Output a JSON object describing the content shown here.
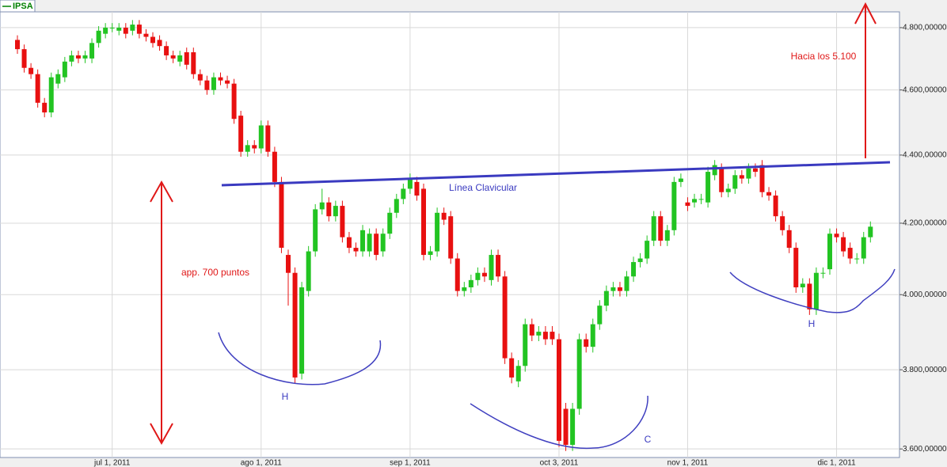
{
  "chart_data": {
    "type": "candlestick",
    "series": [
      {
        "name": "IPSA",
        "color": "#008000"
      }
    ],
    "up_color": "#22c422",
    "down_color": "#e81010",
    "log_scale": true,
    "grid": true,
    "ylim": [
      3579,
      4852
    ],
    "yticks": [
      {
        "value": 3600,
        "label": "3.600,00000"
      },
      {
        "value": 3800,
        "label": "3.800,00000"
      },
      {
        "value": 4000,
        "label": "4.000,00000"
      },
      {
        "value": 4200,
        "label": "4.200,00000"
      },
      {
        "value": 4400,
        "label": "4.400,00000"
      },
      {
        "value": 4600,
        "label": "4.600,00000"
      },
      {
        "value": 4800,
        "label": "4.800,00000"
      }
    ],
    "categories": [
      null,
      null,
      null,
      null,
      null,
      null,
      null,
      null,
      null,
      null,
      null,
      null,
      null,
      null,
      "jul 1, 2011",
      null,
      null,
      null,
      null,
      null,
      null,
      null,
      null,
      null,
      null,
      null,
      null,
      null,
      null,
      null,
      null,
      null,
      null,
      null,
      null,
      null,
      "ago 1, 2011",
      null,
      null,
      null,
      null,
      null,
      null,
      null,
      null,
      null,
      null,
      null,
      null,
      null,
      null,
      null,
      null,
      null,
      null,
      null,
      null,
      null,
      "sep 1, 2011",
      null,
      null,
      null,
      null,
      null,
      null,
      null,
      null,
      null,
      null,
      null,
      null,
      null,
      null,
      null,
      null,
      null,
      null,
      null,
      null,
      null,
      "oct 3, 2011",
      null,
      null,
      null,
      null,
      null,
      null,
      null,
      null,
      null,
      null,
      null,
      null,
      null,
      null,
      null,
      null,
      null,
      null,
      "nov 1, 2011",
      null,
      null,
      null,
      null,
      null,
      null,
      null,
      null,
      null,
      null,
      null,
      null,
      null,
      null,
      null,
      null,
      null,
      null,
      null,
      null,
      null,
      "dic 1, 2011",
      null,
      null,
      null,
      null,
      null
    ],
    "open": [
      4760,
      4730,
      4670,
      4650,
      4560,
      4530,
      4620,
      4640,
      4690,
      4710,
      4700,
      4700,
      4750,
      4780,
      4800,
      4790,
      4800,
      4790,
      4810,
      4780,
      4770,
      4760,
      4740,
      4710,
      4690,
      4720,
      4720,
      4650,
      4630,
      4600,
      4640,
      4630,
      4620,
      4520,
      4410,
      4430,
      4420,
      4490,
      4410,
      4320,
      4110,
      4060,
      3790,
      4010,
      4120,
      4240,
      4260,
      4220,
      4250,
      4160,
      4130,
      4120,
      4120,
      4170,
      4120,
      4170,
      4230,
      4270,
      4300,
      4320,
      4300,
      4110,
      4120,
      4230,
      4220,
      4100,
      4010,
      4020,
      4040,
      4060,
      4040,
      4110,
      4050,
      3830,
      3770,
      3810,
      3920,
      3890,
      3900,
      3900,
      3880,
      3700,
      3610,
      3700,
      3880,
      3860,
      3920,
      3970,
      4010,
      4020,
      4010,
      4050,
      4090,
      4100,
      4150,
      4220,
      4150,
      4180,
      4320,
      4260,
      4260,
      4270,
      4260,
      4340,
      4360,
      4290,
      4300,
      4340,
      4330,
      4360,
      4370,
      4290,
      4280,
      4220,
      4180,
      4130,
      4020,
      4030,
      3960,
      4060,
      4070,
      4170,
      4160,
      4130,
      4100,
      4100,
      4160
    ],
    "high": [
      4775,
      4745,
      4685,
      4665,
      4575,
      4655,
      4665,
      4705,
      4725,
      4725,
      4725,
      4765,
      4805,
      4815,
      4815,
      4815,
      4815,
      4825,
      4825,
      4795,
      4785,
      4775,
      4755,
      4725,
      4725,
      4735,
      4735,
      4665,
      4645,
      4655,
      4655,
      4645,
      4635,
      4535,
      4445,
      4445,
      4505,
      4505,
      4425,
      4335,
      4125,
      4075,
      4035,
      4135,
      4255,
      4300,
      4275,
      4265,
      4265,
      4175,
      4145,
      4195,
      4185,
      4185,
      4185,
      4245,
      4285,
      4315,
      4345,
      4335,
      4315,
      4135,
      4245,
      4245,
      4235,
      4115,
      4035,
      4055,
      4075,
      4075,
      4125,
      4125,
      4065,
      3845,
      3825,
      3935,
      3935,
      3915,
      3915,
      3915,
      3895,
      3715,
      3715,
      3895,
      3895,
      3935,
      3985,
      4025,
      4035,
      4035,
      4065,
      4105,
      4115,
      4165,
      4235,
      4235,
      4195,
      4335,
      4345,
      4275,
      4285,
      4285,
      4365,
      4385,
      4375,
      4315,
      4355,
      4355,
      4375,
      4375,
      4385,
      4305,
      4295,
      4235,
      4195,
      4145,
      4045,
      4045,
      4075,
      4075,
      4185,
      4185,
      4175,
      4145,
      4115,
      4175,
      4205
    ],
    "low": [
      4715,
      4655,
      4635,
      4545,
      4515,
      4515,
      4605,
      4625,
      4675,
      4685,
      4685,
      4685,
      4735,
      4765,
      4785,
      4775,
      4765,
      4775,
      4765,
      4755,
      4735,
      4725,
      4695,
      4685,
      4675,
      4665,
      4635,
      4615,
      4585,
      4585,
      4615,
      4605,
      4495,
      4395,
      4395,
      4405,
      4405,
      4395,
      4305,
      4115,
      3970,
      3765,
      3775,
      3995,
      4105,
      4225,
      4205,
      4205,
      4145,
      4115,
      4105,
      4105,
      4105,
      4095,
      4105,
      4155,
      4215,
      4255,
      4285,
      4265,
      4095,
      4095,
      4105,
      4195,
      4085,
      3995,
      3995,
      4005,
      4025,
      4035,
      4025,
      4035,
      3815,
      3765,
      3755,
      3795,
      3875,
      3875,
      3865,
      3865,
      3605,
      3595,
      3595,
      3685,
      3845,
      3845,
      3905,
      3955,
      3995,
      3995,
      3995,
      4035,
      4075,
      4085,
      4135,
      4135,
      4135,
      4165,
      4305,
      4235,
      4245,
      4255,
      4245,
      4325,
      4275,
      4275,
      4285,
      4315,
      4315,
      4335,
      4275,
      4265,
      4205,
      4165,
      4115,
      4005,
      4005,
      3945,
      3945,
      4045,
      4055,
      4145,
      4105,
      4085,
      4085,
      4085,
      4145
    ],
    "close": [
      4730,
      4670,
      4650,
      4560,
      4530,
      4640,
      4650,
      4690,
      4710,
      4700,
      4710,
      4750,
      4790,
      4800,
      4800,
      4800,
      4780,
      4810,
      4780,
      4770,
      4750,
      4740,
      4710,
      4700,
      4710,
      4680,
      4650,
      4630,
      4600,
      4640,
      4630,
      4620,
      4510,
      4410,
      4430,
      4420,
      4490,
      4410,
      4320,
      4130,
      4060,
      3780,
      4020,
      4120,
      4240,
      4260,
      4220,
      4250,
      4160,
      4130,
      4120,
      4180,
      4170,
      4110,
      4170,
      4230,
      4270,
      4300,
      4330,
      4280,
      4110,
      4120,
      4230,
      4210,
      4100,
      4010,
      4020,
      4040,
      4060,
      4050,
      4110,
      4050,
      3830,
      3780,
      3810,
      3920,
      3890,
      3900,
      3880,
      3880,
      3620,
      3610,
      3700,
      3880,
      3860,
      3920,
      3970,
      4010,
      4020,
      4010,
      4050,
      4090,
      4100,
      4150,
      4220,
      4150,
      4180,
      4320,
      4330,
      4250,
      4270,
      4270,
      4350,
      4370,
      4290,
      4300,
      4340,
      4330,
      4360,
      4350,
      4290,
      4280,
      4220,
      4180,
      4130,
      4020,
      4030,
      3960,
      4060,
      4060,
      4170,
      4160,
      4120,
      4100,
      4100,
      4160,
      4190
    ],
    "annotations": [
      "Hacia los 5.100",
      "Línea Clavicular",
      "app. 700 puntos",
      "H",
      "C",
      "H"
    ]
  }
}
